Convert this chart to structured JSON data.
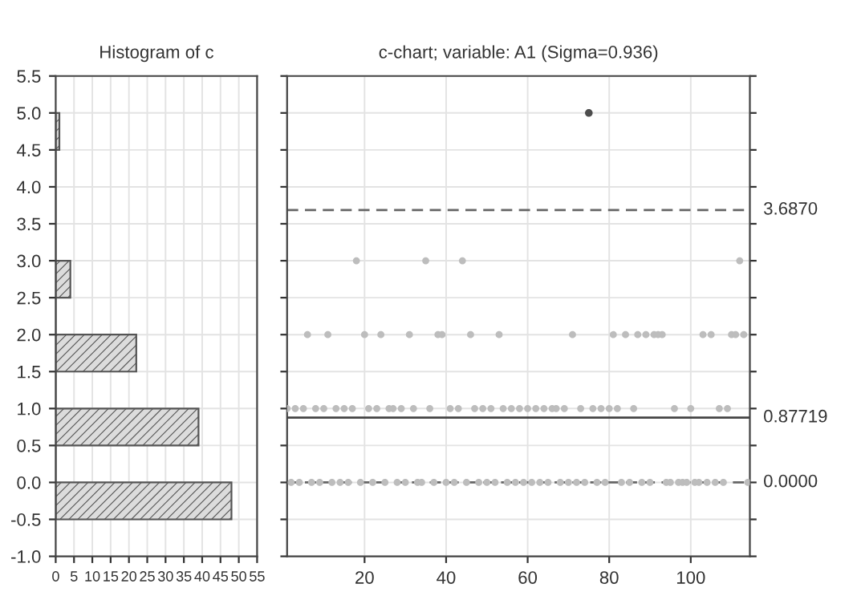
{
  "chart_data": [
    {
      "type": "histogram",
      "title": "Histogram of c",
      "orientation": "horizontal",
      "color": "#555555",
      "bins": [
        -0.5,
        0,
        0.5,
        1,
        1.5,
        2,
        2.5,
        3,
        3.5,
        4,
        4.5,
        5
      ],
      "values": [
        48,
        0,
        39,
        0,
        22,
        0,
        4,
        0,
        0,
        0,
        1
      ],
      "xlim": [
        0,
        55
      ],
      "xticks": [
        0,
        5,
        10,
        15,
        20,
        25,
        30,
        35,
        40,
        45,
        50,
        55
      ],
      "ylim": [
        -1,
        5.5
      ],
      "yticks": [
        {
          "value": -1,
          "label": "-1.0"
        },
        {
          "value": -0.5,
          "label": "-0.5"
        },
        {
          "value": 0,
          "label": "0.0"
        },
        {
          "value": 0.5,
          "label": "0.5"
        },
        {
          "value": 1,
          "label": "1.0"
        },
        {
          "value": 1.5,
          "label": "1.5"
        },
        {
          "value": 2,
          "label": "2.0"
        },
        {
          "value": 2.5,
          "label": "2.5"
        },
        {
          "value": 3,
          "label": "3.0"
        },
        {
          "value": 3.5,
          "label": "3.5"
        },
        {
          "value": 4,
          "label": "4.0"
        },
        {
          "value": 4.5,
          "label": "4.5"
        },
        {
          "value": 5,
          "label": "5.0"
        },
        {
          "value": 5.5,
          "label": "5.5"
        }
      ],
      "grid": true
    },
    {
      "type": "scatter",
      "title": "c-chart; variable: A1 (Sigma=0.936)",
      "marker": "circle",
      "grid": true,
      "tick_labels": "x",
      "xlim": [
        1,
        114.5
      ],
      "xticks": [
        20,
        40,
        60,
        80,
        100
      ],
      "ylim": [
        -1,
        5.5
      ],
      "yticks": [
        {
          "value": -1,
          "label": null
        },
        {
          "value": -0.5,
          "label": null
        },
        {
          "value": 0,
          "label": null
        },
        {
          "value": 0.5,
          "label": null
        },
        {
          "value": 1,
          "label": null
        },
        {
          "value": 1.5,
          "label": null
        },
        {
          "value": 2,
          "label": null
        },
        {
          "value": 2.5,
          "label": null
        },
        {
          "value": 3,
          "label": null
        },
        {
          "value": 3.5,
          "label": null
        },
        {
          "value": 4,
          "label": null
        },
        {
          "value": 4.5,
          "label": null
        },
        {
          "value": 5,
          "label": null
        },
        {
          "value": 5.5,
          "label": null
        }
      ],
      "series": [
        {
          "color": "#bdbdbd",
          "x": [
            1,
            2,
            3,
            4,
            5,
            6,
            7,
            8,
            9,
            10,
            11,
            12,
            13,
            14,
            15,
            16,
            17,
            18,
            19,
            20,
            21,
            22,
            23,
            24,
            25,
            26,
            27,
            28,
            29,
            30,
            31,
            32,
            33,
            34,
            35,
            36,
            37,
            38,
            39,
            40,
            41,
            42,
            43,
            44,
            45,
            46,
            47,
            48,
            49,
            50,
            51,
            52,
            53,
            54,
            55,
            56,
            57,
            58,
            59,
            60,
            61,
            62,
            63,
            64,
            65,
            66,
            67,
            68,
            69,
            70,
            71,
            72,
            73,
            74,
            76,
            77,
            78,
            79,
            80,
            81,
            82,
            83,
            84,
            85,
            86,
            87,
            88,
            89,
            90,
            91,
            92,
            93,
            94,
            95,
            96,
            97,
            98,
            99,
            100,
            101,
            102,
            103,
            104,
            105,
            106,
            107,
            108,
            109,
            110,
            111,
            112,
            113,
            114
          ],
          "values": [
            1,
            0,
            1,
            0,
            1,
            2,
            0,
            1,
            0,
            1,
            2,
            0,
            1,
            0,
            1,
            0,
            1,
            3,
            0,
            2,
            1,
            0,
            1,
            2,
            0,
            1,
            1,
            0,
            1,
            0,
            2,
            1,
            0,
            0,
            3,
            1,
            0,
            2,
            2,
            0,
            1,
            0,
            1,
            3,
            0,
            2,
            1,
            0,
            1,
            0,
            1,
            0,
            2,
            1,
            0,
            1,
            0,
            1,
            0,
            1,
            0,
            1,
            0,
            1,
            0,
            1,
            1,
            0,
            1,
            0,
            2,
            0,
            1,
            0,
            1,
            0,
            1,
            0,
            1,
            2,
            1,
            0,
            2,
            0,
            1,
            2,
            0,
            2,
            0,
            2,
            2,
            2,
            0,
            0,
            1,
            0,
            0,
            0,
            1,
            0,
            0,
            2,
            0,
            2,
            0,
            1,
            0,
            1,
            2,
            2,
            3,
            2,
            0
          ]
        },
        {
          "color": "#4d4d4d",
          "x": [
            75
          ],
          "values": [
            5
          ]
        }
      ],
      "ref_lines": [
        {
          "axis": "y",
          "value": 3.687,
          "label": "3.6870",
          "line_style": "dashed",
          "color": "#666666"
        },
        {
          "axis": "y",
          "value": 0.87719,
          "label": "0.87719",
          "line_style": "solid",
          "color": "#444444"
        },
        {
          "axis": "y",
          "value": 0,
          "label": "0.0000",
          "line_style": "dashed",
          "color": "#666666"
        }
      ]
    }
  ]
}
